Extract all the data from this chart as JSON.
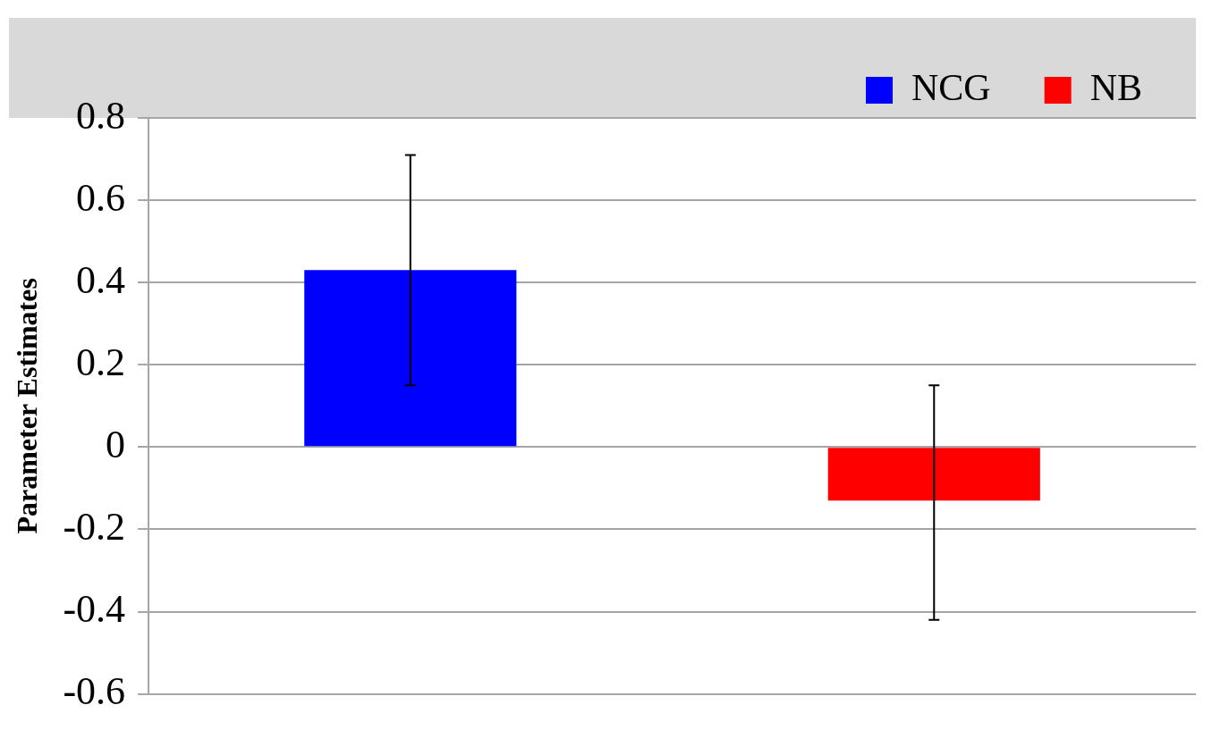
{
  "chart_data": {
    "type": "bar",
    "ylabel": "Parameter Estimates",
    "categories": [
      null,
      null
    ],
    "series": [
      {
        "name": "NCG",
        "color": "#0000ff",
        "values": [
          0.43,
          null
        ],
        "errors": [
          [
            0.15,
            0.71
          ],
          null
        ]
      },
      {
        "name": "NB",
        "color": "#ff0000",
        "values": [
          null,
          -0.13
        ],
        "errors": [
          null,
          [
            -0.42,
            0.15
          ]
        ]
      }
    ],
    "ylim": [
      -0.6,
      0.8
    ],
    "yticks": [
      -0.6,
      -0.4,
      -0.2,
      0,
      0.2,
      0.4,
      0.6,
      0.8
    ],
    "grid": "y",
    "legend": "top right"
  }
}
